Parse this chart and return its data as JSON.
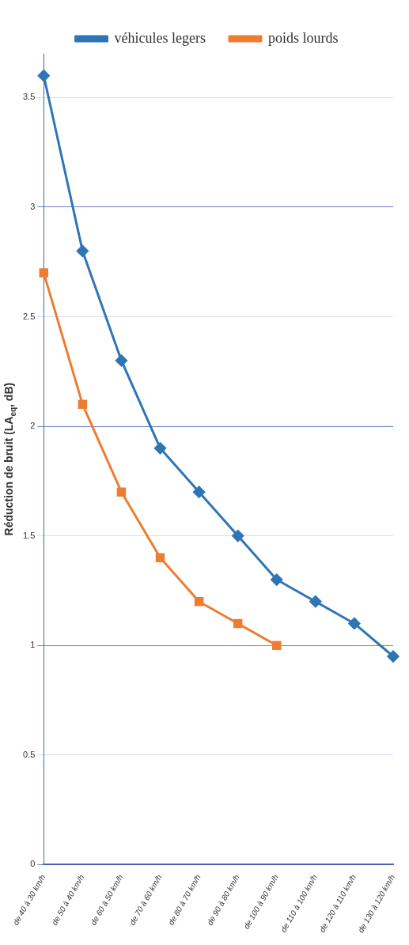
{
  "chart_data": {
    "type": "line",
    "ylabel": "Réduction de bruit (LA$_{eq}$, dB)",
    "categories": [
      "de 40 à 30 km/h",
      "de 50 à 40 km/h",
      "de 60 à 50 km/h",
      "de 70 à 60 km/h",
      "de 80 à 70 km/h",
      "de 90 à 80 km/h",
      "de 100 à 90 km/h",
      "de 110 à 100 km/h",
      "de 120 à 110 km/h",
      "de 130 à 120 km/h"
    ],
    "series": [
      {
        "name": "véhicules legers",
        "color": "#2e75b6",
        "marker": "diamond",
        "values": [
          3.6,
          2.8,
          2.3,
          1.9,
          1.7,
          1.5,
          1.3,
          1.2,
          1.1,
          0.95
        ]
      },
      {
        "name": "poids lourds",
        "color": "#ed7d31",
        "marker": "square",
        "values": [
          2.7,
          2.1,
          1.7,
          1.4,
          1.2,
          1.1,
          1.0,
          null,
          null,
          null
        ]
      }
    ],
    "ylim": [
      0,
      3.7
    ],
    "yticks": [
      0,
      0.5,
      1,
      1.5,
      2,
      2.5,
      3,
      3.5
    ],
    "grid": "y",
    "legend": "top",
    "line_style": "solid"
  }
}
